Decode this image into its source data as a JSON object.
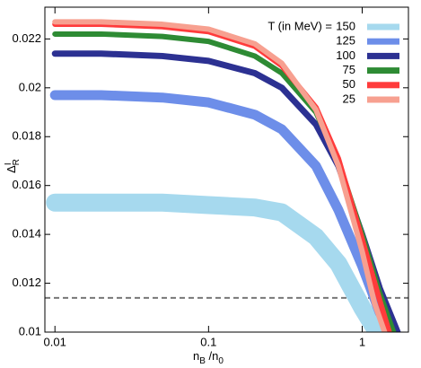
{
  "chart_data": {
    "type": "line",
    "xlabel": [
      "n",
      "B",
      " /n",
      "0"
    ],
    "ylabel": [
      "Δ",
      "I",
      "R"
    ],
    "xscale": "log",
    "xlim": [
      0.0086,
      2
    ],
    "ylim": [
      0.01,
      0.0233
    ],
    "xticks": [
      0.01,
      0.1,
      1
    ],
    "yticks": [
      0.01,
      0.012,
      0.014,
      0.016,
      0.018,
      0.02,
      0.022
    ],
    "legend_title": "T (in MeV) =",
    "legend": "upper right",
    "reference_line": {
      "y": 0.0114,
      "color": "#777777"
    },
    "series": [
      {
        "name": "150",
        "color": "#a6d9ee",
        "x": [
          0.01,
          0.02,
          0.05,
          0.1,
          0.2,
          0.3,
          0.5,
          0.7,
          1,
          1.25
        ],
        "values": [
          0.0153,
          0.0153,
          0.0153,
          0.0152,
          0.0151,
          0.0149,
          0.0139,
          0.0128,
          0.011,
          0.01
        ]
      },
      {
        "name": "125",
        "color": "#6d8ee9",
        "x": [
          0.01,
          0.02,
          0.05,
          0.1,
          0.2,
          0.3,
          0.5,
          0.7,
          1,
          1.3,
          1.6
        ],
        "values": [
          0.0197,
          0.0197,
          0.0196,
          0.0194,
          0.0189,
          0.0183,
          0.0168,
          0.015,
          0.0127,
          0.0108,
          0.01
        ]
      },
      {
        "name": "100",
        "color": "#2c3192",
        "x": [
          0.01,
          0.02,
          0.05,
          0.1,
          0.2,
          0.3,
          0.5,
          0.7,
          1,
          1.3,
          1.7
        ],
        "values": [
          0.0214,
          0.0214,
          0.0213,
          0.0211,
          0.0206,
          0.02,
          0.0185,
          0.0168,
          0.014,
          0.0118,
          0.01
        ]
      },
      {
        "name": "75",
        "color": "#2e8b34",
        "x": [
          0.01,
          0.02,
          0.05,
          0.1,
          0.2,
          0.3,
          0.5,
          0.7,
          1,
          1.3,
          1.6
        ],
        "values": [
          0.0222,
          0.0222,
          0.0221,
          0.0219,
          0.0213,
          0.0206,
          0.019,
          0.017,
          0.014,
          0.0116,
          0.01
        ]
      },
      {
        "name": "50",
        "color": "#ff3b3b",
        "x": [
          0.01,
          0.02,
          0.05,
          0.1,
          0.2,
          0.3,
          0.5,
          0.7,
          1,
          1.3,
          1.5
        ],
        "values": [
          0.0226,
          0.0226,
          0.0225,
          0.0223,
          0.0217,
          0.0209,
          0.0192,
          0.0171,
          0.0138,
          0.0113,
          0.01
        ]
      },
      {
        "name": "25",
        "color": "#f7a090",
        "x": [
          0.01,
          0.02,
          0.05,
          0.1,
          0.2,
          0.3,
          0.5,
          0.7,
          1,
          1.2,
          1.4
        ],
        "values": [
          0.0227,
          0.0227,
          0.0226,
          0.0224,
          0.0218,
          0.021,
          0.0191,
          0.0168,
          0.0133,
          0.0112,
          0.01
        ]
      }
    ]
  }
}
